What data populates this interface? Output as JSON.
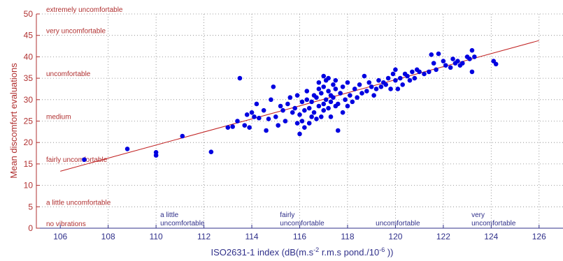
{
  "chart_data": {
    "type": "scatter",
    "title": "",
    "xlabel": {
      "main": "ISO2631-1 index (dB(m.s",
      "sup1": "-2",
      "mid": " r.m.s pond./10",
      "sup2": "-6",
      "end": " ))"
    },
    "ylabel": "Mean discomfort evaluations",
    "xlim": [
      105,
      127
    ],
    "ylim": [
      0,
      50
    ],
    "xticks": [
      106,
      108,
      110,
      112,
      114,
      116,
      118,
      120,
      122,
      124,
      126
    ],
    "yticks": [
      0,
      5,
      10,
      15,
      20,
      25,
      30,
      35,
      40,
      45,
      50
    ],
    "grid": "dotted",
    "colors": {
      "axis": "#30308a",
      "y_text": "#b03030",
      "x_text": "#30308a",
      "points": "#0000e0",
      "fit_line": "#c02020",
      "grid": "#808080"
    },
    "y_categories": [
      {
        "label": "extremely uncomfortable",
        "y": 50
      },
      {
        "label": "very uncomfortable",
        "y": 45
      },
      {
        "label": "uncomfortable",
        "y": 35
      },
      {
        "label": "medium",
        "y": 25
      },
      {
        "label": "fairly uncomfortable",
        "y": 15
      },
      {
        "label": "a little uncomfortable",
        "y": 5
      },
      {
        "label": "no vibrations",
        "y": 0
      }
    ],
    "x_categories": [
      {
        "lines": [
          "a little",
          "uncomfortable"
        ],
        "x": 110
      },
      {
        "lines": [
          "fairly",
          "uncomfortable"
        ],
        "x": 115
      },
      {
        "lines": [
          "uncomfortable"
        ],
        "x": 119
      },
      {
        "lines": [
          "very",
          "uncomfortable"
        ],
        "x": 123
      }
    ],
    "fit_line": {
      "x": [
        106,
        126
      ],
      "y": [
        13.3,
        43.8
      ]
    },
    "points": [
      [
        107,
        16
      ],
      [
        108.8,
        18.5
      ],
      [
        110,
        17
      ],
      [
        110,
        17.7
      ],
      [
        111.1,
        21.5
      ],
      [
        112.3,
        17.8
      ],
      [
        113,
        23.5
      ],
      [
        113.2,
        23.7
      ],
      [
        113.4,
        25
      ],
      [
        113.5,
        35
      ],
      [
        113.7,
        24
      ],
      [
        113.8,
        26.5
      ],
      [
        113.9,
        23.5
      ],
      [
        114,
        27
      ],
      [
        114.1,
        26
      ],
      [
        114.2,
        29
      ],
      [
        114.3,
        25.7
      ],
      [
        114.5,
        27.5
      ],
      [
        114.6,
        22.8
      ],
      [
        114.7,
        25.5
      ],
      [
        114.8,
        30
      ],
      [
        114.9,
        33
      ],
      [
        115,
        26
      ],
      [
        115.1,
        24
      ],
      [
        115.2,
        28.5
      ],
      [
        115.3,
        27.5
      ],
      [
        115.4,
        25
      ],
      [
        115.5,
        29
      ],
      [
        115.6,
        30.5
      ],
      [
        115.7,
        27
      ],
      [
        115.8,
        28
      ],
      [
        115.9,
        31
      ],
      [
        115.9,
        24.5
      ],
      [
        116,
        22
      ],
      [
        116,
        26.5
      ],
      [
        116.1,
        29.5
      ],
      [
        116.1,
        25
      ],
      [
        116.2,
        27.5
      ],
      [
        116.2,
        23.5
      ],
      [
        116.3,
        30
      ],
      [
        116.3,
        32
      ],
      [
        116.4,
        24.5
      ],
      [
        116.4,
        28
      ],
      [
        116.5,
        26
      ],
      [
        116.5,
        29.5
      ],
      [
        116.6,
        31
      ],
      [
        116.6,
        27
      ],
      [
        116.7,
        30.5
      ],
      [
        116.7,
        25.5
      ],
      [
        116.8,
        32.5
      ],
      [
        116.8,
        28.5
      ],
      [
        116.8,
        34
      ],
      [
        116.9,
        26
      ],
      [
        116.9,
        31.5
      ],
      [
        117,
        29
      ],
      [
        117,
        35.5
      ],
      [
        117,
        33
      ],
      [
        117,
        27.5
      ],
      [
        117.1,
        30
      ],
      [
        117.1,
        34.5
      ],
      [
        117.2,
        28
      ],
      [
        117.2,
        32
      ],
      [
        117.2,
        35
      ],
      [
        117.3,
        29.5
      ],
      [
        117.3,
        31
      ],
      [
        117.3,
        26
      ],
      [
        117.4,
        33.5
      ],
      [
        117.4,
        30.5
      ],
      [
        117.5,
        28.5
      ],
      [
        117.5,
        32.5
      ],
      [
        117.5,
        34.5
      ],
      [
        117.6,
        22.8
      ],
      [
        117.6,
        29
      ],
      [
        117.7,
        31.5
      ],
      [
        117.8,
        27
      ],
      [
        117.8,
        33
      ],
      [
        117.9,
        30
      ],
      [
        118,
        28.5
      ],
      [
        118,
        34
      ],
      [
        118.1,
        31
      ],
      [
        118.2,
        29.5
      ],
      [
        118.3,
        32.5
      ],
      [
        118.4,
        30.5
      ],
      [
        118.5,
        33.5
      ],
      [
        118.6,
        31.5
      ],
      [
        118.7,
        35.5
      ],
      [
        118.8,
        32
      ],
      [
        118.9,
        34
      ],
      [
        119,
        33
      ],
      [
        119.1,
        31
      ],
      [
        119.2,
        32.5
      ],
      [
        119.3,
        34.5
      ],
      [
        119.4,
        33
      ],
      [
        119.5,
        34
      ],
      [
        119.6,
        33.5
      ],
      [
        119.7,
        35
      ],
      [
        119.8,
        32.5
      ],
      [
        119.9,
        36
      ],
      [
        120,
        34.5
      ],
      [
        120,
        37
      ],
      [
        120.1,
        32.5
      ],
      [
        120.2,
        35
      ],
      [
        120.3,
        33.5
      ],
      [
        120.4,
        36
      ],
      [
        120.5,
        35.5
      ],
      [
        120.6,
        34.5
      ],
      [
        120.7,
        36.5
      ],
      [
        120.8,
        35
      ],
      [
        120.9,
        37
      ],
      [
        121,
        36.5
      ],
      [
        121.2,
        36
      ],
      [
        121.4,
        36.5
      ],
      [
        121.5,
        40.5
      ],
      [
        121.6,
        38.5
      ],
      [
        121.7,
        37
      ],
      [
        121.8,
        40.7
      ],
      [
        122,
        39
      ],
      [
        122.1,
        38
      ],
      [
        122.3,
        37.5
      ],
      [
        122.4,
        39.5
      ],
      [
        122.5,
        38.5
      ],
      [
        122.6,
        39
      ],
      [
        122.7,
        38
      ],
      [
        122.8,
        38.5
      ],
      [
        123,
        40
      ],
      [
        123.1,
        39.5
      ],
      [
        123.2,
        41.5
      ],
      [
        123.2,
        36.5
      ],
      [
        123.3,
        40
      ],
      [
        124.1,
        39
      ],
      [
        124.2,
        38.3
      ]
    ]
  }
}
